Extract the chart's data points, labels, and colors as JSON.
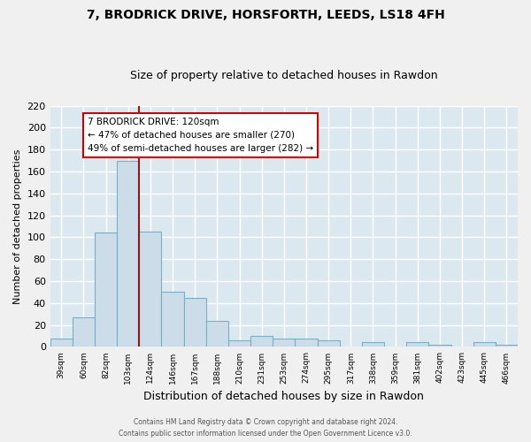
{
  "title": "7, BRODRICK DRIVE, HORSFORTH, LEEDS, LS18 4FH",
  "subtitle": "Size of property relative to detached houses in Rawdon",
  "xlabel": "Distribution of detached houses by size in Rawdon",
  "ylabel": "Number of detached properties",
  "bar_values": [
    8,
    27,
    104,
    170,
    105,
    50,
    45,
    24,
    6,
    10,
    8,
    8,
    6,
    0,
    4,
    0,
    4,
    2,
    0,
    4,
    2
  ],
  "bar_labels": [
    "39sqm",
    "60sqm",
    "82sqm",
    "103sqm",
    "124sqm",
    "146sqm",
    "167sqm",
    "188sqm",
    "210sqm",
    "231sqm",
    "253sqm",
    "274sqm",
    "295sqm",
    "317sqm",
    "338sqm",
    "359sqm",
    "381sqm",
    "402sqm",
    "423sqm",
    "445sqm",
    "466sqm"
  ],
  "bar_color": "#ccdce8",
  "bar_edge_color": "#7aafc8",
  "vline_color": "#8b1a1a",
  "vline_idx": 4,
  "annotation_line1": "7 BRODRICK DRIVE: 120sqm",
  "annotation_line2": "← 47% of detached houses are smaller (270)",
  "annotation_line3": "49% of semi-detached houses are larger (282) →",
  "annotation_box_color": "#ffffff",
  "annotation_box_edge": "#cc0000",
  "ylim": [
    0,
    220
  ],
  "yticks": [
    0,
    20,
    40,
    60,
    80,
    100,
    120,
    140,
    160,
    180,
    200,
    220
  ],
  "footer_line1": "Contains HM Land Registry data © Crown copyright and database right 2024.",
  "footer_line2": "Contains public sector information licensed under the Open Government Licence v3.0.",
  "fig_bg_color": "#f0f0f0",
  "plot_bg_color": "#dce8f0",
  "grid_color": "#ffffff",
  "title_fontsize": 10,
  "subtitle_fontsize": 9,
  "ylabel_fontsize": 8,
  "xlabel_fontsize": 9,
  "ytick_fontsize": 8,
  "xtick_fontsize": 6.5
}
